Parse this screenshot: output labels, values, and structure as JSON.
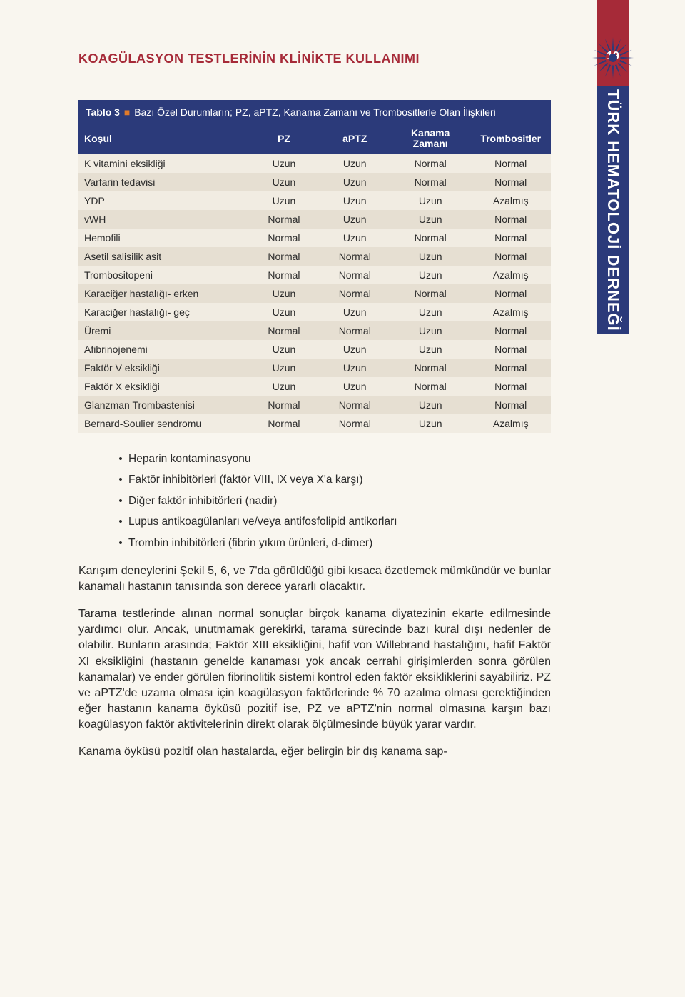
{
  "page_number": "19",
  "header_title": "KOAGÜLASYON TESTLERİNİN KLİNİKTE KULLANIMI",
  "side_tab": "TÜRK HEMATOLOJİ DERNEĞİ",
  "colors": {
    "background": "#f9f6ef",
    "header_red": "#a62a38",
    "table_blue": "#2b3a7a",
    "row_even": "#f1ece2",
    "row_odd": "#e6dfd2",
    "orange_dot": "#e07a2a",
    "text": "#2b2b2b",
    "white": "#ffffff"
  },
  "table": {
    "caption_prefix": "Tablo 3",
    "caption_rest": "Bazı Özel Durumların; PZ, aPTZ, Kanama Zamanı ve Trombositlerle Olan İlişkileri",
    "columns": [
      "Koşul",
      "PZ",
      "aPTZ",
      "Kanama Zamanı",
      "Trombositler"
    ],
    "col_widths": [
      "36%",
      "15%",
      "15%",
      "17%",
      "17%"
    ],
    "rows": [
      [
        "K vitamini eksikliği",
        "Uzun",
        "Uzun",
        "Normal",
        "Normal"
      ],
      [
        "Varfarin tedavisi",
        "Uzun",
        "Uzun",
        "Normal",
        "Normal"
      ],
      [
        "YDP",
        "Uzun",
        "Uzun",
        "Uzun",
        "Azalmış"
      ],
      [
        "vWH",
        "Normal",
        "Uzun",
        "Uzun",
        "Normal"
      ],
      [
        "Hemofili",
        "Normal",
        "Uzun",
        "Normal",
        "Normal"
      ],
      [
        "Asetil salisilik asit",
        "Normal",
        "Normal",
        "Uzun",
        "Normal"
      ],
      [
        "Trombositopeni",
        "Normal",
        "Normal",
        "Uzun",
        "Azalmış"
      ],
      [
        "Karaciğer hastalığı- erken",
        "Uzun",
        "Normal",
        "Normal",
        "Normal"
      ],
      [
        "Karaciğer hastalığı- geç",
        "Uzun",
        "Uzun",
        "Uzun",
        "Azalmış"
      ],
      [
        "Üremi",
        "Normal",
        "Normal",
        "Uzun",
        "Normal"
      ],
      [
        "Afibrinojenemi",
        "Uzun",
        "Uzun",
        "Uzun",
        "Normal"
      ],
      [
        "Faktör V eksikliği",
        "Uzun",
        "Uzun",
        "Normal",
        "Normal"
      ],
      [
        "Faktör X eksikliği",
        "Uzun",
        "Uzun",
        "Normal",
        "Normal"
      ],
      [
        "Glanzman Trombastenisi",
        "Normal",
        "Normal",
        "Uzun",
        "Normal"
      ],
      [
        "Bernard-Soulier sendromu",
        "Normal",
        "Normal",
        "Uzun",
        "Azalmış"
      ]
    ]
  },
  "bullets": [
    "Heparin kontaminasyonu",
    "Faktör inhibitörleri (faktör VIII, IX veya X'a karşı)",
    "Diğer faktör inhibitörleri (nadir)",
    "Lupus antikoagülanları ve/veya antifosfolipid antikorları",
    "Trombin inhibitörleri (fibrin yıkım ürünleri, d-dimer)"
  ],
  "paragraphs": [
    "Karışım deneylerini Şekil 5, 6, ve 7'da görüldüğü gibi kısaca özetlemek mümkündür ve bunlar kanamalı hastanın tanısında son derece yararlı olacaktır.",
    "Tarama testlerinde alınan normal sonuçlar birçok kanama diyatezinin ekarte edilmesinde yardımcı olur. Ancak, unutmamak gerekirki, tarama sürecinde bazı kural dışı nedenler de olabilir. Bunların arasında; Faktör XIII eksikliğini, hafif von Willebrand hastalığını, hafif Faktör XI eksikliğini (hastanın genelde kanaması yok ancak cerrahi girişimlerden sonra görülen kanamalar) ve ender görülen fibrinolitik sistemi kontrol eden faktör eksikliklerini sayabiliriz. PZ ve aPTZ'de uzama olması için koagülasyon faktörlerinde % 70 azalma olması gerektiğinden eğer hastanın kanama öyküsü pozitif ise, PZ ve aPTZ'nin normal olmasına karşın bazı koagülasyon faktör aktivitelerinin direkt olarak ölçülmesinde büyük yarar vardır.",
    "Kanama öyküsü pozitif olan hastalarda, eğer belirgin bir dış kanama sap-"
  ]
}
